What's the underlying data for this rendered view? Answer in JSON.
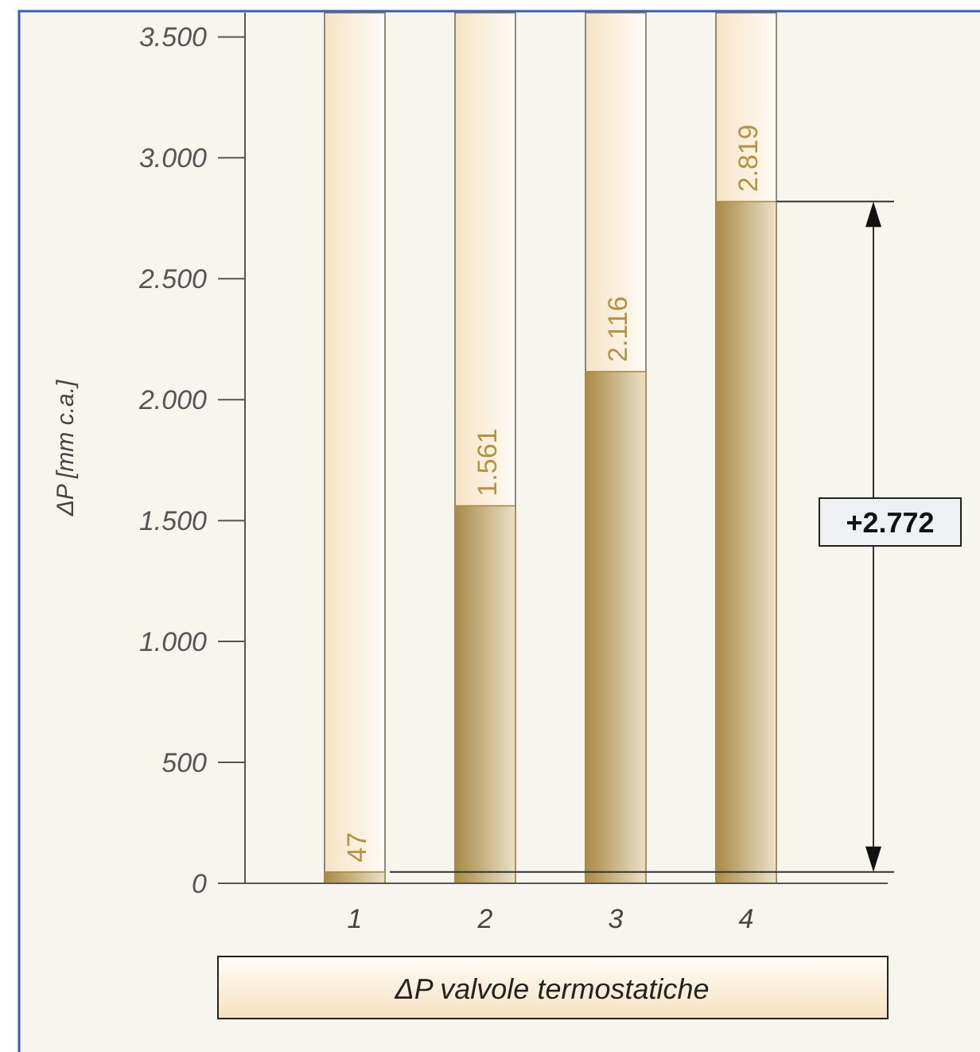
{
  "chart_data": {
    "type": "bar",
    "categories": [
      "1",
      "2",
      "3",
      "4"
    ],
    "values": [
      47,
      1561,
      2116,
      2819
    ],
    "value_labels": [
      "47",
      "1.561",
      "2.116",
      "2.819"
    ],
    "color": "#a98a47",
    "ylim": [
      0,
      3600
    ],
    "yticks": [
      {
        "value": 0,
        "label": "0"
      },
      {
        "value": 500,
        "label": "500"
      },
      {
        "value": 1000,
        "label": "1.000"
      },
      {
        "value": 1500,
        "label": "1.500"
      },
      {
        "value": 2000,
        "label": "2.000"
      },
      {
        "value": 2500,
        "label": "2.500"
      },
      {
        "value": 3000,
        "label": "3.000"
      },
      {
        "value": 3500,
        "label": "3.500"
      }
    ],
    "xlabel": "ΔP valvole termostatiche",
    "ylabel": "ΔP [mm c.a.]",
    "ref_lines": [
      {
        "axis": "y",
        "value": 47,
        "color": "#333333"
      },
      {
        "axis": "y",
        "value": 2819,
        "color": "#333333"
      }
    ],
    "annotations": [
      "+2.772"
    ]
  }
}
